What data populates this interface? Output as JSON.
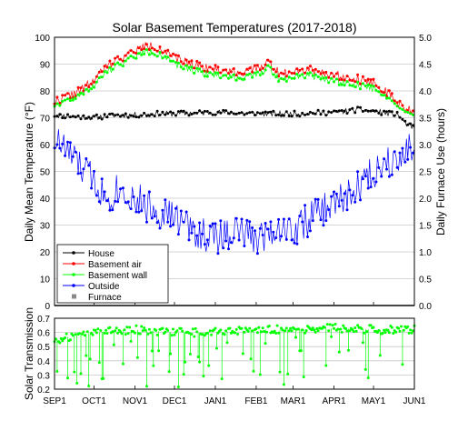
{
  "chart_data": [
    {
      "type": "line",
      "title": "Solar Basement Temperatures (2017-2018)",
      "ylabel": "Daily Mean Temperature (°F)",
      "ylabel_right": "Daily Furnace Use (hours)",
      "ylim": [
        0,
        100
      ],
      "ylim_right": [
        0,
        5.0
      ],
      "yticks": [
        "0",
        "10",
        "20",
        "30",
        "40",
        "50",
        "60",
        "70",
        "80",
        "90",
        "100"
      ],
      "yticks_right": [
        "0.0",
        "0.5",
        "1.0",
        "1.5",
        "2.0",
        "2.5",
        "3.0",
        "3.5",
        "4.0",
        "4.5",
        "5.0"
      ],
      "grid": true,
      "legend_position": "bottom-left",
      "x_start": "2017-09-01",
      "x_end": "2018-06-01",
      "series": [
        {
          "name": "House",
          "color": "#000000",
          "axis": "left",
          "anchors": [
            [
              "2017-09-01",
              71
            ],
            [
              "2017-09-15",
              70.5
            ],
            [
              "2017-10-01",
              70
            ],
            [
              "2017-10-15",
              71
            ],
            [
              "2017-11-01",
              71
            ],
            [
              "2017-11-15",
              71.5
            ],
            [
              "2017-12-01",
              71.5
            ],
            [
              "2018-01-01",
              72
            ],
            [
              "2018-02-01",
              71.5
            ],
            [
              "2018-03-01",
              71.5
            ],
            [
              "2018-04-01",
              72
            ],
            [
              "2018-04-20",
              73
            ],
            [
              "2018-05-01",
              72.5
            ],
            [
              "2018-05-20",
              71
            ],
            [
              "2018-05-25",
              68
            ],
            [
              "2018-06-01",
              66
            ]
          ]
        },
        {
          "name": "Basement air",
          "color": "#ff0000",
          "axis": "left",
          "anchors": [
            [
              "2017-09-01",
              76
            ],
            [
              "2017-09-10",
              78
            ],
            [
              "2017-09-20",
              80
            ],
            [
              "2017-10-01",
              84
            ],
            [
              "2017-10-10",
              89
            ],
            [
              "2017-10-20",
              92
            ],
            [
              "2017-11-01",
              95
            ],
            [
              "2017-11-10",
              97
            ],
            [
              "2017-11-20",
              96
            ],
            [
              "2017-12-01",
              92
            ],
            [
              "2017-12-15",
              90
            ],
            [
              "2018-01-01",
              88
            ],
            [
              "2018-01-20",
              87
            ],
            [
              "2018-02-01",
              88
            ],
            [
              "2018-02-10",
              91
            ],
            [
              "2018-02-20",
              86
            ],
            [
              "2018-03-01",
              88
            ],
            [
              "2018-03-15",
              88
            ],
            [
              "2018-04-01",
              86
            ],
            [
              "2018-04-15",
              85
            ],
            [
              "2018-05-01",
              83
            ],
            [
              "2018-05-10",
              80
            ],
            [
              "2018-05-20",
              75
            ],
            [
              "2018-06-01",
              72
            ]
          ]
        },
        {
          "name": "Basement wall",
          "color": "#00ff00",
          "axis": "left",
          "anchors": [
            [
              "2017-09-01",
              75
            ],
            [
              "2017-09-10",
              77
            ],
            [
              "2017-09-20",
              79
            ],
            [
              "2017-10-01",
              82
            ],
            [
              "2017-10-10",
              87
            ],
            [
              "2017-10-20",
              90
            ],
            [
              "2017-11-01",
              93
            ],
            [
              "2017-11-10",
              95
            ],
            [
              "2017-11-20",
              94
            ],
            [
              "2017-12-01",
              90
            ],
            [
              "2017-12-15",
              88
            ],
            [
              "2018-01-01",
              86
            ],
            [
              "2018-01-20",
              85
            ],
            [
              "2018-02-01",
              86
            ],
            [
              "2018-02-10",
              89
            ],
            [
              "2018-02-20",
              84
            ],
            [
              "2018-03-01",
              86
            ],
            [
              "2018-03-15",
              86
            ],
            [
              "2018-04-01",
              84
            ],
            [
              "2018-04-15",
              83
            ],
            [
              "2018-05-01",
              81
            ],
            [
              "2018-05-10",
              79
            ],
            [
              "2018-05-20",
              75
            ],
            [
              "2018-06-01",
              72
            ]
          ]
        },
        {
          "name": "Outside",
          "color": "#0000ff",
          "axis": "left",
          "anchors": [
            [
              "2017-09-01",
              62
            ],
            [
              "2017-09-10",
              58
            ],
            [
              "2017-09-20",
              52
            ],
            [
              "2017-10-01",
              47
            ],
            [
              "2017-10-10",
              40
            ],
            [
              "2017-10-20",
              44
            ],
            [
              "2017-11-01",
              40
            ],
            [
              "2017-11-10",
              37
            ],
            [
              "2017-11-20",
              35
            ],
            [
              "2017-12-01",
              33
            ],
            [
              "2017-12-15",
              28
            ],
            [
              "2018-01-01",
              25
            ],
            [
              "2018-01-15",
              28
            ],
            [
              "2018-02-01",
              25
            ],
            [
              "2018-02-15",
              29
            ],
            [
              "2018-03-01",
              28
            ],
            [
              "2018-03-15",
              33
            ],
            [
              "2018-04-01",
              38
            ],
            [
              "2018-04-15",
              42
            ],
            [
              "2018-05-01",
              50
            ],
            [
              "2018-05-15",
              55
            ],
            [
              "2018-06-01",
              60
            ]
          ]
        },
        {
          "name": "Furnace",
          "color": "#888888",
          "axis": "right",
          "anchors": [
            [
              "2017-09-01",
              0
            ],
            [
              "2018-06-01",
              0
            ]
          ]
        }
      ]
    },
    {
      "type": "scatter",
      "ylabel": "Solar Transmission",
      "ylim": [
        0.2,
        0.7
      ],
      "yticks": [
        "0.2",
        "0.3",
        "0.4",
        "0.5",
        "0.6",
        "0.7"
      ],
      "xticks": [
        "SEP1",
        "OCT1",
        "NOV1",
        "DEC1",
        "JAN1",
        "FEB1",
        "MAR1",
        "APR1",
        "MAY1",
        "JUN1"
      ],
      "grid": true,
      "series": [
        {
          "color": "#00ff00",
          "anchors": [
            [
              "2017-09-01",
              0.55
            ],
            [
              "2017-10-01",
              0.6
            ],
            [
              "2017-11-01",
              0.62
            ],
            [
              "2017-12-01",
              0.6
            ],
            [
              "2018-01-01",
              0.6
            ],
            [
              "2018-02-01",
              0.62
            ],
            [
              "2018-03-01",
              0.62
            ],
            [
              "2018-04-01",
              0.63
            ],
            [
              "2018-05-01",
              0.62
            ],
            [
              "2018-06-01",
              0.62
            ]
          ]
        }
      ]
    }
  ]
}
